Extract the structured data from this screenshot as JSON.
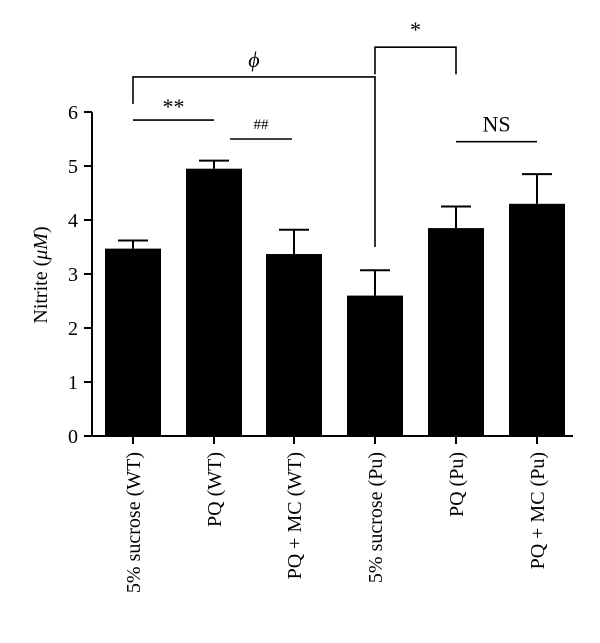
{
  "chart_data": {
    "type": "bar",
    "title": "",
    "xlabel": "",
    "ylabel": "Nitrite (μM)",
    "ylabel_parts": {
      "prefix": "Nitrite (",
      "unit": "μM",
      "suffix": ")"
    },
    "ylim": [
      0,
      6
    ],
    "yticks": [
      "0",
      "1",
      "2",
      "3",
      "4",
      "5",
      "6"
    ],
    "categories": [
      "5% sucrose (WT)",
      "PQ (WT)",
      "PQ + MC (WT)",
      "5% sucrose (Pu)",
      "PQ (Pu)",
      "PQ + MC (Pu)"
    ],
    "values": [
      3.47,
      4.95,
      3.37,
      2.6,
      3.85,
      4.3
    ],
    "errors": [
      0.15,
      0.15,
      0.45,
      0.47,
      0.4,
      0.55
    ],
    "bar_color": "#000000",
    "grid": false,
    "legend": "none",
    "annotations": [
      {
        "text": "**",
        "type": "line",
        "from": 0,
        "to": 1,
        "y": 5.85
      },
      {
        "text": "##",
        "type": "line",
        "from": 1,
        "to": 2,
        "y": 5.5
      },
      {
        "text": "NS",
        "type": "line",
        "from": 4,
        "to": 5,
        "y": 5.45
      },
      {
        "text": "ϕ",
        "type": "bracket",
        "from": 0,
        "to": 3,
        "y": 6.65,
        "drop_left": 6.15,
        "drop_right": 3.5
      },
      {
        "text": "*",
        "type": "bracket",
        "from": 3,
        "to": 4,
        "y": 7.2,
        "drop_left": 6.7,
        "drop_right": 6.7
      }
    ]
  }
}
